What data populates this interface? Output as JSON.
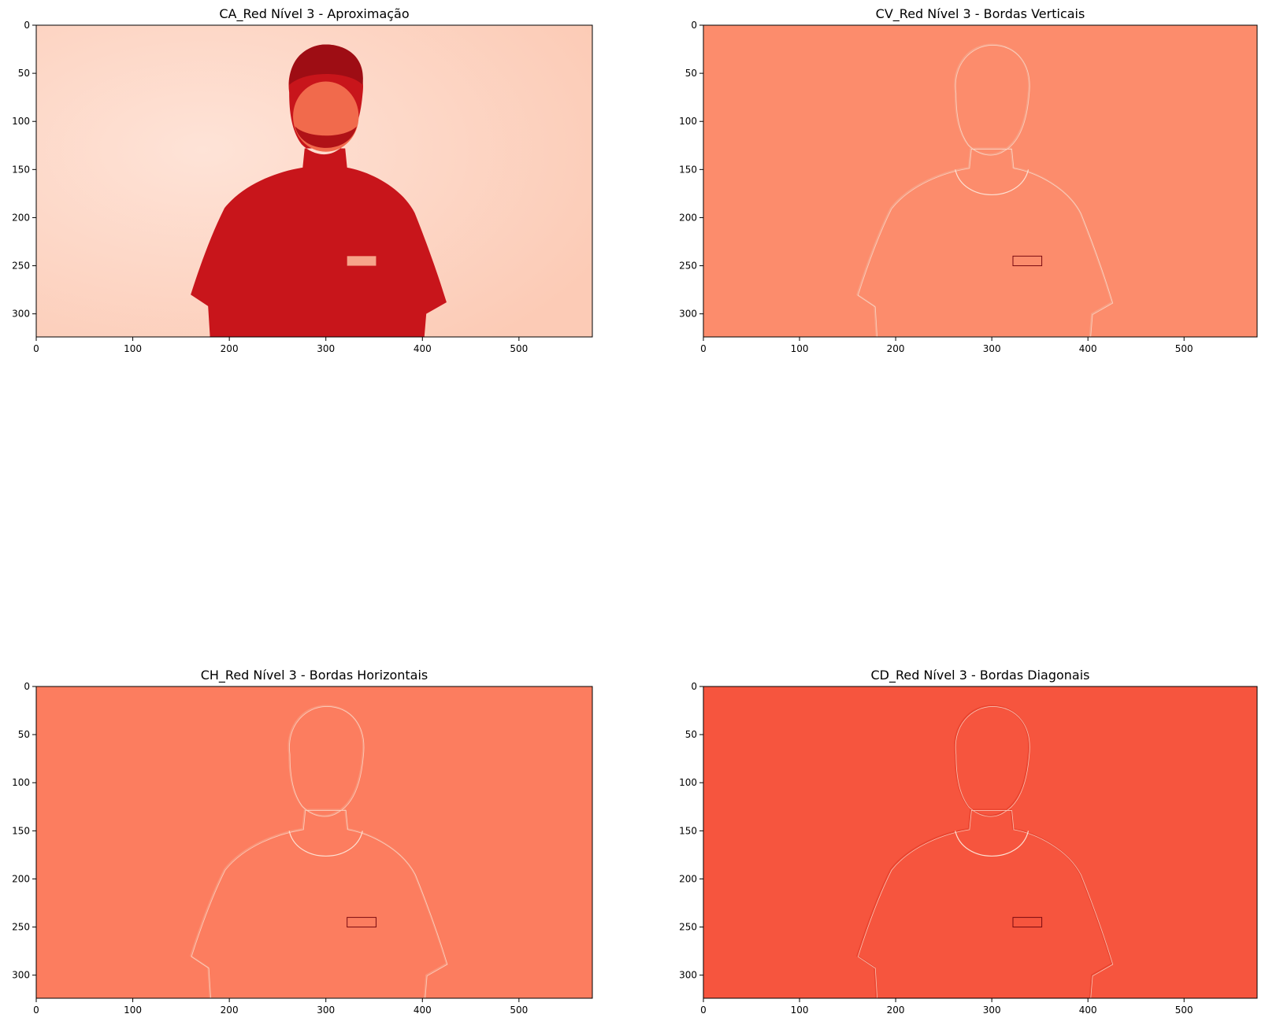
{
  "chart_data": [
    {
      "type": "heatmap",
      "title": "CA_Red Nível 3 - Aproximação",
      "colormap": "Reds",
      "xlim": [
        0,
        576
      ],
      "ylim": [
        324,
        0
      ],
      "xticks": [
        0,
        100,
        200,
        300,
        400,
        500
      ],
      "yticks": [
        0,
        50,
        100,
        150,
        200,
        250,
        300
      ],
      "background_color": "#fdd7c8",
      "subject_color": "#c8151b",
      "grid": false
    },
    {
      "type": "heatmap",
      "title": "CV_Red Nível 3 - Bordas Verticais",
      "colormap": "Reds",
      "xlim": [
        0,
        576
      ],
      "ylim": [
        324,
        0
      ],
      "xticks": [
        0,
        100,
        200,
        300,
        400,
        500
      ],
      "yticks": [
        0,
        50,
        100,
        150,
        200,
        250,
        300
      ],
      "background_color": "#fc8c6c",
      "subject_color": "#f7a084",
      "grid": false
    },
    {
      "type": "heatmap",
      "title": "CH_Red Nível 3 - Bordas Horizontais",
      "colormap": "Reds",
      "xlim": [
        0,
        576
      ],
      "ylim": [
        324,
        0
      ],
      "xticks": [
        0,
        100,
        200,
        300,
        400,
        500
      ],
      "yticks": [
        0,
        50,
        100,
        150,
        200,
        250,
        300
      ],
      "background_color": "#fc7d5f",
      "subject_color": "#f99478",
      "grid": false
    },
    {
      "type": "heatmap",
      "title": "CD_Red Nível 3 - Bordas Diagonais",
      "colormap": "Reds",
      "xlim": [
        0,
        576
      ],
      "ylim": [
        324,
        0
      ],
      "xticks": [
        0,
        100,
        200,
        300,
        400,
        500
      ],
      "yticks": [
        0,
        50,
        100,
        150,
        200,
        250,
        300
      ],
      "background_color": "#f6553e",
      "subject_color": "#e9442f",
      "grid": false
    }
  ]
}
